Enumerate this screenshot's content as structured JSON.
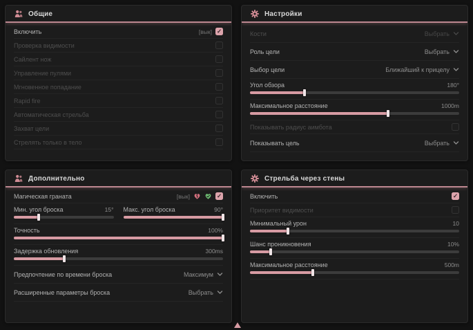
{
  "colors": {
    "accent": "#d79ba3",
    "panel_bg": "#1c1c1c",
    "header_line": "#bd8790",
    "checked_bg": "#dca3ab"
  },
  "panels": {
    "general": {
      "title": "Общие",
      "icon": "users-icon",
      "rows": [
        {
          "type": "check",
          "label": "Включить",
          "tag": "[вык]",
          "checked": true,
          "enabled": true
        },
        {
          "type": "check",
          "label": "Проверка видимости",
          "checked": false,
          "enabled": false
        },
        {
          "type": "check",
          "label": "Сайлент нож",
          "checked": false,
          "enabled": false
        },
        {
          "type": "check",
          "label": "Управление пулями",
          "checked": false,
          "enabled": false
        },
        {
          "type": "check",
          "label": "Мгновенное попадание",
          "checked": false,
          "enabled": false
        },
        {
          "type": "check",
          "label": "Rapid fire",
          "checked": false,
          "enabled": false
        },
        {
          "type": "check",
          "label": "Автоматическая стрельба",
          "checked": false,
          "enabled": false
        },
        {
          "type": "check",
          "label": "Захват цели",
          "checked": false,
          "enabled": false
        },
        {
          "type": "check",
          "label": "Стрелять только в тело",
          "checked": false,
          "enabled": false
        }
      ]
    },
    "settings": {
      "title": "Настройки",
      "icon": "gear-icon",
      "rows": [
        {
          "type": "select",
          "label": "Кости",
          "value": "Выбрать",
          "enabled": false
        },
        {
          "type": "select",
          "label": "Роль цели",
          "value": "Выбрать",
          "enabled": true
        },
        {
          "type": "select",
          "label": "Выбор цели",
          "value": "Ближайший к прицелу",
          "enabled": true
        },
        {
          "type": "slider",
          "label": "Угол обзора",
          "value": "180°",
          "fill": 26
        },
        {
          "type": "slider",
          "label": "Максимальное расстояние",
          "value": "1000m",
          "fill": 66
        },
        {
          "type": "check",
          "label": "Показывать радиус аимбота",
          "checked": false,
          "enabled": false
        },
        {
          "type": "select",
          "label": "Показывать цель",
          "value": "Выбрать",
          "enabled": true
        }
      ]
    },
    "additional": {
      "title": "Дополнительно",
      "icon": "users-icon",
      "rows": [
        {
          "type": "check",
          "label": "Магическая граната",
          "tag": "[вык]",
          "icons": [
            "broken-heart-icon",
            "green-heart-icon"
          ],
          "checked": true,
          "enabled": true
        },
        {
          "type": "dual",
          "items": [
            {
              "label": "Мин. угол броска",
              "value": "15°",
              "fill": 25
            },
            {
              "label": "Макс. угол броска",
              "value": "90°",
              "fill": 100
            }
          ]
        },
        {
          "type": "slider",
          "label": "Точность",
          "value": "100%",
          "fill": 100
        },
        {
          "type": "slider",
          "label": "Задержка обновления",
          "value": "300ms",
          "fill": 24
        },
        {
          "type": "select",
          "label": "Предпочтение по времени броска",
          "value": "Максимум",
          "enabled": true
        },
        {
          "type": "select",
          "label": "Расширенные параметры броска",
          "value": "Выбрать",
          "enabled": true
        }
      ]
    },
    "wallbang": {
      "title": "Стрельба через стены",
      "icon": "gear-icon",
      "rows": [
        {
          "type": "check",
          "label": "Включить",
          "checked": true,
          "enabled": true
        },
        {
          "type": "check",
          "label": "Приоритет видимости",
          "checked": false,
          "enabled": false
        },
        {
          "type": "slider",
          "label": "Минимальный урон",
          "value": "10",
          "fill": 18
        },
        {
          "type": "slider",
          "label": "Шанс проникновения",
          "value": "10%",
          "fill": 10
        },
        {
          "type": "slider",
          "label": "Максимальное расстояние",
          "value": "500m",
          "fill": 30
        }
      ]
    }
  },
  "footer": {
    "scroll_indicator": "up-triangle"
  }
}
